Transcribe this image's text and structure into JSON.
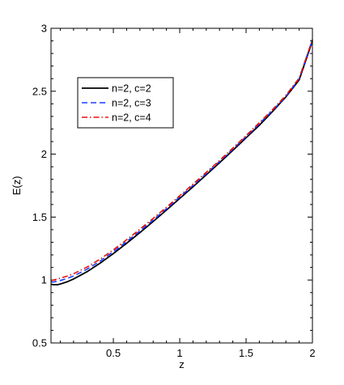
{
  "chart_data": {
    "type": "line",
    "xlabel": "z",
    "ylabel": "E(z)",
    "xlim": [
      0.03,
      2
    ],
    "ylim": [
      0.5,
      3
    ],
    "xticks": [
      0.5,
      1,
      1.5,
      2
    ],
    "xtick_labels": [
      "0.5",
      "1",
      "1.5",
      "2"
    ],
    "yticks": [
      0.5,
      1,
      1.5,
      2,
      2.5,
      3
    ],
    "ytick_labels": [
      "0.5",
      "1",
      "1.5",
      "2",
      "2.5",
      "3"
    ],
    "grid": false,
    "legend_position": "upper-left",
    "series": [
      {
        "name": "n=2, c=2",
        "color": "#000000",
        "style": "solid",
        "x": [
          0.03,
          0.05,
          0.08,
          0.1,
          0.15,
          0.2,
          0.3,
          0.4,
          0.5,
          0.6,
          0.7,
          0.8,
          0.9,
          1.0,
          1.1,
          1.2,
          1.3,
          1.4,
          1.5,
          1.6,
          1.7,
          1.8,
          1.9,
          2.0
        ],
        "y": [
          0.966,
          0.963,
          0.963,
          0.968,
          0.985,
          1.008,
          1.065,
          1.134,
          1.21,
          1.292,
          1.377,
          1.465,
          1.556,
          1.648,
          1.741,
          1.836,
          1.932,
          2.03,
          2.13,
          2.23,
          2.34,
          2.455,
          2.59,
          2.9
        ]
      },
      {
        "name": "n=2, c=3",
        "color": "#1f3fff",
        "style": "dashed",
        "x": [
          0.03,
          0.05,
          0.08,
          0.1,
          0.15,
          0.2,
          0.3,
          0.4,
          0.5,
          0.6,
          0.7,
          0.8,
          0.9,
          1.0,
          1.1,
          1.2,
          1.3,
          1.4,
          1.5,
          1.6,
          1.7,
          1.8,
          1.9,
          2.0
        ],
        "y": [
          0.983,
          0.985,
          0.99,
          0.996,
          1.012,
          1.032,
          1.085,
          1.15,
          1.226,
          1.306,
          1.39,
          1.477,
          1.567,
          1.66,
          1.752,
          1.846,
          1.942,
          2.04,
          2.14,
          2.242,
          2.348,
          2.46,
          2.6,
          2.91
        ]
      },
      {
        "name": "n=2, c=4",
        "color": "#e81010",
        "style": "dashdot",
        "x": [
          0.03,
          0.05,
          0.08,
          0.1,
          0.15,
          0.2,
          0.3,
          0.4,
          0.5,
          0.6,
          0.7,
          0.8,
          0.9,
          1.0,
          1.1,
          1.2,
          1.3,
          1.4,
          1.5,
          1.6,
          1.7,
          1.8,
          1.9,
          2.0
        ],
        "y": [
          0.995,
          1.0,
          1.008,
          1.015,
          1.03,
          1.05,
          1.102,
          1.166,
          1.24,
          1.32,
          1.404,
          1.49,
          1.578,
          1.67,
          1.762,
          1.856,
          1.95,
          2.048,
          2.148,
          2.25,
          2.355,
          2.468,
          2.605,
          2.91
        ]
      }
    ]
  }
}
